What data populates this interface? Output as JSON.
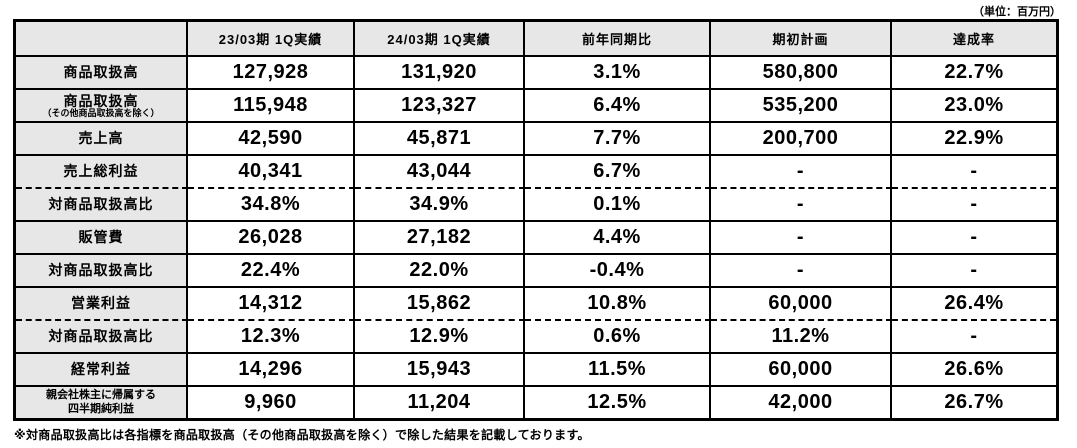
{
  "unit_label": "（単位：百万円）",
  "footnote": "※対商品取扱高比は各指標を商品取扱高（その他商品取扱高を除く）で除した結果を記載しております。",
  "table": {
    "header": [
      "",
      "23/03期 1Q実績",
      "24/03期 1Q実績",
      "前年同期比",
      "期初計画",
      "達成率"
    ],
    "rows": [
      {
        "label": "商品取扱高",
        "values": [
          "127,928",
          "131,920",
          "3.1%",
          "580,800",
          "22.7%"
        ]
      },
      {
        "label": "商品取扱高",
        "sublabel": "（その他商品取扱高を除く）",
        "values": [
          "115,948",
          "123,327",
          "6.4%",
          "535,200",
          "23.0%"
        ]
      },
      {
        "label": "売上高",
        "values": [
          "42,590",
          "45,871",
          "7.7%",
          "200,700",
          "22.9%"
        ]
      },
      {
        "label": "売上総利益",
        "values": [
          "40,341",
          "43,044",
          "6.7%",
          "-",
          "-"
        ]
      },
      {
        "label": "対商品取扱高比",
        "dashed_top": true,
        "values": [
          "34.8%",
          "34.9%",
          "0.1%",
          "-",
          "-"
        ]
      },
      {
        "label": "販管費",
        "values": [
          "26,028",
          "27,182",
          "4.4%",
          "-",
          "-"
        ]
      },
      {
        "label": "対商品取扱高比",
        "values": [
          "22.4%",
          "22.0%",
          "-0.4%",
          "-",
          "-"
        ]
      },
      {
        "label": "営業利益",
        "values": [
          "14,312",
          "15,862",
          "10.8%",
          "60,000",
          "26.4%"
        ]
      },
      {
        "label": "対商品取扱高比",
        "dashed_top": true,
        "values": [
          "12.3%",
          "12.9%",
          "0.6%",
          "11.2%",
          "-"
        ]
      },
      {
        "label": "経常利益",
        "values": [
          "14,296",
          "15,943",
          "11.5%",
          "60,000",
          "26.6%"
        ]
      },
      {
        "label": "親会社株主に帰属する",
        "label_line2": "四半期純利益",
        "small_label": true,
        "values": [
          "9,960",
          "11,204",
          "12.5%",
          "42,000",
          "26.7%"
        ]
      }
    ]
  },
  "chart_data": {
    "type": "table",
    "unit": "百万円",
    "columns": [
      "",
      "23/03期 1Q実績",
      "24/03期 1Q実績",
      "前年同期比",
      "期初計画",
      "達成率"
    ],
    "rows": [
      [
        "商品取扱高",
        127928,
        131920,
        "3.1%",
        580800,
        "22.7%"
      ],
      [
        "商品取扱高（その他商品取扱高を除く）",
        115948,
        123327,
        "6.4%",
        535200,
        "23.0%"
      ],
      [
        "売上高",
        42590,
        45871,
        "7.7%",
        200700,
        "22.9%"
      ],
      [
        "売上総利益",
        40341,
        43044,
        "6.7%",
        null,
        null
      ],
      [
        "対商品取扱高比",
        "34.8%",
        "34.9%",
        "0.1%",
        null,
        null
      ],
      [
        "販管費",
        26028,
        27182,
        "4.4%",
        null,
        null
      ],
      [
        "対商品取扱高比",
        "22.4%",
        "22.0%",
        "-0.4%",
        null,
        null
      ],
      [
        "営業利益",
        14312,
        15862,
        "10.8%",
        60000,
        "26.4%"
      ],
      [
        "対商品取扱高比",
        "12.3%",
        "12.9%",
        "0.6%",
        "11.2%",
        null
      ],
      [
        "経常利益",
        14296,
        15943,
        "11.5%",
        60000,
        "26.6%"
      ],
      [
        "親会社株主に帰属する四半期純利益",
        9960,
        11204,
        "12.5%",
        42000,
        "26.7%"
      ]
    ],
    "footnote": "※対商品取扱高比は各指標を商品取扱高（その他商品取扱高を除く）で除した結果を記載しております。"
  },
  "colors": {
    "header_background": "#e7e7e7",
    "border": "#000000",
    "cell_background": "#ffffff"
  }
}
